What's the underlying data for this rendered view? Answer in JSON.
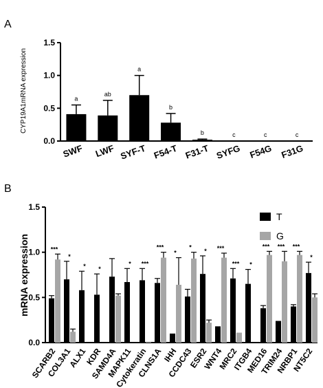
{
  "chart_data": [
    {
      "panel": "A",
      "type": "bar",
      "ylabel": "CYP19A1mRNA expression",
      "ylim": [
        0,
        1.5
      ],
      "yticks": [
        "0.0",
        "0.5",
        "1.0",
        "1.5"
      ],
      "categories": [
        "SWF",
        "LWF",
        "SYF-T",
        "F54-T",
        "F31-T",
        "SYFG",
        "F54G",
        "F31G"
      ],
      "values": [
        0.41,
        0.39,
        0.7,
        0.28,
        0.02,
        0,
        0,
        0
      ],
      "errors": [
        0.14,
        0.23,
        0.3,
        0.14,
        0.01,
        0,
        0,
        0
      ],
      "letters": [
        "a",
        "ab",
        "a",
        "b",
        "b",
        "c",
        "c",
        "c"
      ],
      "color": "#000000"
    },
    {
      "panel": "B",
      "type": "bar",
      "ylabel": "mRNA expression",
      "ylim": [
        0,
        1.5
      ],
      "yticks": [
        "0.0",
        "0.5",
        "1.0",
        "1.5"
      ],
      "categories": [
        "SCARB2",
        "COL3A1",
        "ALX1",
        "KDR",
        "SAMD4A",
        "MAPK11",
        "Cytokeratin",
        "CLNS1A",
        "IHH",
        "CCDC43",
        "ESR2",
        "WNT4",
        "MRC2",
        "ITGB4",
        "MED16",
        "TRIM24",
        "NRBP1",
        "NT5C2"
      ],
      "series": [
        {
          "name": "T",
          "color": "#000000",
          "values": [
            0.49,
            0.7,
            0.58,
            0.53,
            0.73,
            0.67,
            0.69,
            0.66,
            0.1,
            0.51,
            0.76,
            0.18,
            0.71,
            0.65,
            0.38,
            0.24,
            0.4,
            0.77
          ],
          "errors": [
            0.03,
            0.2,
            0.21,
            0.23,
            0.2,
            0.15,
            0.13,
            0.05,
            0,
            0.08,
            0.2,
            0,
            0.11,
            0.16,
            0.03,
            0,
            0.02,
            0.12
          ]
        },
        {
          "name": "G",
          "color": "#a6a6a6",
          "values": [
            0.92,
            0.12,
            0,
            0,
            0.52,
            0,
            0.01,
            0.94,
            0.64,
            0.93,
            0.22,
            0.94,
            0.11,
            0,
            0.97,
            0.9,
            0.97,
            0.5
          ],
          "errors": [
            0.06,
            0.03,
            0,
            0,
            0.02,
            0,
            0,
            0.06,
            0.3,
            0.07,
            0.03,
            0.05,
            0,
            0,
            0.04,
            0.11,
            0.04,
            0.04
          ]
        }
      ],
      "significance": [
        "***",
        "*",
        "*",
        "*",
        "",
        "*",
        "***",
        "***",
        "*",
        "*",
        "*",
        "***",
        "***",
        "*",
        "***",
        "***",
        "***",
        "*"
      ],
      "legend": {
        "position": "top-right",
        "entries": [
          "T",
          "G"
        ]
      }
    }
  ]
}
